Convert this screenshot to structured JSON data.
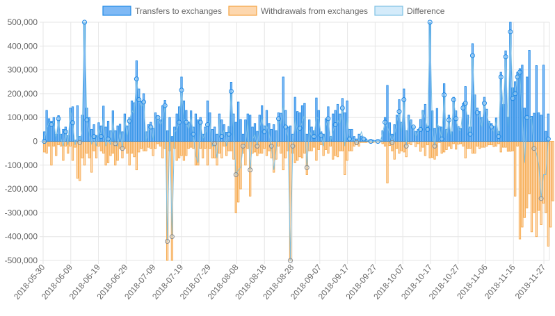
{
  "chart_data": {
    "type": "bar",
    "title": "",
    "xlabel": "",
    "ylabel": "",
    "ylim": [
      -500000,
      500000
    ],
    "grid": true,
    "legend_position": "top",
    "y_ticks": [
      "500,000",
      "400,000",
      "300,000",
      "200,000",
      "100,000",
      "0",
      "-100,000",
      "-200,000",
      "-300,000",
      "-400,000",
      "-500,000"
    ],
    "y_tick_values": [
      500000,
      400000,
      300000,
      200000,
      100000,
      0,
      -100000,
      -200000,
      -300000,
      -400000,
      -500000
    ],
    "x_ticks": [
      "2018-05-30",
      "2018-06-09",
      "2018-06-19",
      "2018-06-29",
      "2018-07-09",
      "2018-07-19",
      "2018-07-29",
      "2018-08-08",
      "2018-08-18",
      "2018-08-28",
      "2018-09-07",
      "2018-09-17",
      "2018-09-27",
      "2018-10-07",
      "2018-10-17",
      "2018-10-27",
      "2018-11-06",
      "2018-11-16",
      "2018-11-27"
    ],
    "start_date": "2018-05-30",
    "end_date": "2018-11-29",
    "colors": {
      "transfers_fill": "#7fb9f5",
      "transfers_line": "#1e88e5",
      "withdrawals_fill": "#fdd7ae",
      "withdrawals_line": "#f5a442",
      "difference_fill": "#d4ebfa",
      "difference_line": "#7ec1e4",
      "grid": "#e6e6e6",
      "axis_text": "#666666"
    },
    "series": [
      {
        "name": "Transfers to exchanges",
        "values": [
          40000,
          130000,
          95000,
          85000,
          100000,
          30000,
          108000,
          30000,
          50000,
          60000,
          25000,
          140000,
          145000,
          5000,
          150000,
          20000,
          110000,
          500000,
          140000,
          100000,
          50000,
          70000,
          25000,
          78000,
          65000,
          148000,
          60000,
          85000,
          45000,
          128000,
          45000,
          65000,
          72000,
          40000,
          115000,
          65000,
          100000,
          170000,
          162000,
          338000,
          220000,
          168000,
          200000,
          40000,
          70000,
          80000,
          55000,
          120000,
          108000,
          90000,
          150000,
          172000,
          45000,
          100000,
          20000,
          60000,
          115000,
          145000,
          270000,
          170000,
          130000,
          80000,
          128000,
          60000,
          115000,
          90000,
          100000,
          30000,
          60000,
          170000,
          120000,
          50000,
          60000,
          30000,
          115000,
          90000,
          70000,
          38000,
          62000,
          248000,
          115000,
          80000,
          165000,
          92000,
          30000,
          90000,
          115000,
          110000,
          60000,
          75000,
          42000,
          110000,
          150000,
          65000,
          130000,
          75000,
          50000,
          70000,
          45000,
          120000,
          118000,
          270000,
          130000,
          60000,
          65000,
          30000,
          185000,
          125000,
          120000,
          150000,
          160000,
          30000,
          90000,
          60000,
          45000,
          182000,
          130000,
          40000,
          30000,
          95000,
          145000,
          20000,
          115000,
          130000,
          155000,
          115000,
          180000,
          120000,
          170000,
          50000,
          50000,
          20000,
          10000,
          30000,
          22000,
          15000,
          10000,
          5000,
          5000,
          5000,
          3000,
          3000,
          2000,
          45000,
          100000,
          235000,
          78000,
          30000,
          70000,
          110000,
          175000,
          80000,
          220000,
          45000,
          110000,
          90000,
          62000,
          42000,
          50000,
          92000,
          130000,
          155000,
          65000,
          500000,
          128000,
          55000,
          138000,
          62000,
          60000,
          242000,
          50000,
          110000,
          40000,
          185000,
          128000,
          62000,
          55000,
          160000,
          230000,
          110000,
          60000,
          410000,
          195000,
          140000,
          125000,
          100000,
          185000,
          135000,
          85000,
          75000,
          62000,
          98000,
          42000,
          290000,
          155000,
          380000,
          102000,
          500000,
          225000,
          250000,
          290000,
          305000,
          320000,
          140000,
          270000,
          382000,
          105000,
          118000,
          318000,
          120000,
          110000,
          320000,
          42000,
          115000
        ],
        "net_marker_values": [
          0,
          55000,
          80000,
          70000,
          82000,
          12000,
          95000,
          15000,
          -20000,
          40000,
          -15000,
          130000,
          78000,
          -15000,
          25000,
          -5000,
          50000,
          500000,
          90000,
          30000,
          -10000,
          20000,
          -20000,
          55000,
          20000,
          100000,
          -20000,
          10000,
          -15000,
          95000,
          -10000,
          -20000,
          45000,
          -30000,
          100000,
          20000,
          85000,
          130000,
          118000,
          262000,
          175000,
          145000,
          165000,
          5000,
          45000,
          60000,
          10000,
          88000,
          100000,
          70000,
          85000,
          150000,
          -420000,
          60000,
          -400000,
          38000,
          50000,
          80000,
          215000,
          95000,
          80000,
          50000,
          105000,
          30000,
          -60000,
          -90000,
          80000,
          10000,
          30000,
          70000,
          88000,
          -20000,
          -10000,
          -70000,
          95000,
          20000,
          50000,
          -20000,
          30000,
          210000,
          40000,
          -140000,
          -120000,
          -110000,
          -20000,
          -10000,
          85000,
          -120000,
          10000,
          30000,
          -20000,
          60000,
          100000,
          40000,
          68000,
          35000,
          -20000,
          -120000,
          -30000,
          95000,
          70000,
          150000,
          60000,
          20000,
          -500000,
          -20000,
          95000,
          40000,
          55000,
          80000,
          110000,
          -110000,
          50000,
          20000,
          20000,
          100000,
          95000,
          25000,
          -20000,
          60000,
          95000,
          0,
          40000,
          70000,
          90000,
          75000,
          140000,
          -20000,
          95000,
          10000,
          10000,
          5000,
          -5000,
          10000,
          40000,
          10000,
          5000,
          2000,
          0,
          0,
          0,
          0,
          0,
          35000,
          80000,
          60000,
          30000,
          -5000,
          30000,
          80000,
          125000,
          40000,
          175000,
          -20000,
          100000,
          75000,
          60000,
          20000,
          40000,
          50000,
          130000,
          95000,
          50000,
          500000,
          60000,
          -20000,
          78000,
          55000,
          10000,
          195000,
          20000,
          90000,
          20000,
          175000,
          95000,
          50000,
          45000,
          140000,
          160000,
          80000,
          30000,
          360000,
          145000,
          120000,
          100000,
          60000,
          160000,
          115000,
          70000,
          60000,
          40000,
          90000,
          20000,
          270000,
          130000,
          355000,
          60000,
          460000,
          180000,
          200000,
          270000,
          290000,
          100000,
          -90000,
          100000,
          95000,
          100000,
          -30000,
          -50000,
          -100000,
          -240000,
          -140000,
          -140000,
          10000
        ]
      },
      {
        "name": "Withdrawals from exchanges",
        "values": [
          -45000,
          -50000,
          -20000,
          -100000,
          -20000,
          -60000,
          -15000,
          -20000,
          -80000,
          -20000,
          -50000,
          -20000,
          -80000,
          -25000,
          -155000,
          -165000,
          -70000,
          -100000,
          -50000,
          -70000,
          -130000,
          -40000,
          -70000,
          -20000,
          -40000,
          -50000,
          -100000,
          -90000,
          -60000,
          -50000,
          -100000,
          -80000,
          -30000,
          -70000,
          -30000,
          -50000,
          -100000,
          -50000,
          -65000,
          -120000,
          -45000,
          -30000,
          -40000,
          -40000,
          -25000,
          -30000,
          -60000,
          -30000,
          -10000,
          -20000,
          -70000,
          -30000,
          -500000,
          -40000,
          -500000,
          -30000,
          -80000,
          -70000,
          -60000,
          -80000,
          -60000,
          -30000,
          -25000,
          -30000,
          -100000,
          -100000,
          -30000,
          -70000,
          -30000,
          -100000,
          -30000,
          -70000,
          -70000,
          -100000,
          -50000,
          -70000,
          -20000,
          -60000,
          -40000,
          -40000,
          -75000,
          -300000,
          -255000,
          -200000,
          -50000,
          -100000,
          -30000,
          -230000,
          -50000,
          -45000,
          -60000,
          -50000,
          -50000,
          -30000,
          -60000,
          -40000,
          -70000,
          -130000,
          -75000,
          -20000,
          -50000,
          -120000,
          -70000,
          -40000,
          -500000,
          -50000,
          -90000,
          -80000,
          -65000,
          -70000,
          -50000,
          -140000,
          -40000,
          -40000,
          -25000,
          -80000,
          -35000,
          -15000,
          -60000,
          -35000,
          -50000,
          -20000,
          -75000,
          -60000,
          -65000,
          -40000,
          -40000,
          -140000,
          -80000,
          -40000,
          -40000,
          -20000,
          -15000,
          -20000,
          -5000,
          -5000,
          -5000,
          -3000,
          -5000,
          -5000,
          -3000,
          -3000,
          -2000,
          -10000,
          -20000,
          -175000,
          -18000,
          -40000,
          -75000,
          -30000,
          -50000,
          -40000,
          -45000,
          -65000,
          -10000,
          -15000,
          -2000,
          -22000,
          -10000,
          -42000,
          -25000,
          -60000,
          -15000,
          -70000,
          -68000,
          -75000,
          -60000,
          -5000,
          -50000,
          -45000,
          -35000,
          -20000,
          -30000,
          -10000,
          -33000,
          -12000,
          -10000,
          -20000,
          -70000,
          -30000,
          -30000,
          -50000,
          -50000,
          -20000,
          -30000,
          -25000,
          -25000,
          -20000,
          -15000,
          -15000,
          -22000,
          -20000,
          -10000,
          -45000,
          -25000,
          -25000,
          -42000,
          -42000,
          -40000,
          -230000,
          -20000,
          -410000,
          -360000,
          -320000,
          -280000,
          -220000,
          -380000,
          -300000,
          -400000,
          -290000,
          -350000,
          -260000,
          -300000,
          -440000,
          -360000,
          -250000
        ]
      },
      {
        "name": "Difference",
        "values": []
      }
    ]
  }
}
